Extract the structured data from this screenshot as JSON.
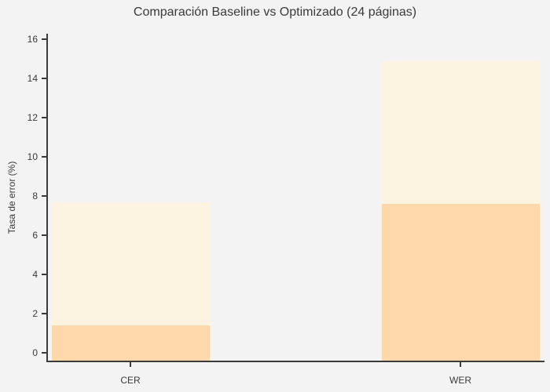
{
  "title": "Comparación Baseline vs Optimizado (24 páginas)",
  "ylabel": "Tasa de error (%)",
  "colors": {
    "background": "#f2f3f2",
    "axis": "#3b3b3b",
    "text": "#3a3a3a",
    "baseline_bar": "#fdf3e1",
    "optimized_bar": "#fcd8ab"
  },
  "chart_data": {
    "type": "bar",
    "title": "Comparación Baseline vs Optimizado (24 páginas)",
    "xlabel": "",
    "ylabel": "Tasa de error (%)",
    "categories": [
      "CER",
      "WER"
    ],
    "series": [
      {
        "name": "Baseline",
        "color": "#fdf3e1",
        "values": [
          7.7,
          14.9
        ]
      },
      {
        "name": "Optimizado",
        "color": "#fcd8ab",
        "values": [
          1.4,
          7.6
        ]
      }
    ],
    "bar_style": "overlapped",
    "ylim": [
      0,
      16.4
    ],
    "yticks": [
      0,
      2,
      4,
      6,
      8,
      10,
      12,
      14,
      16
    ],
    "grid": false,
    "legend": "none"
  }
}
